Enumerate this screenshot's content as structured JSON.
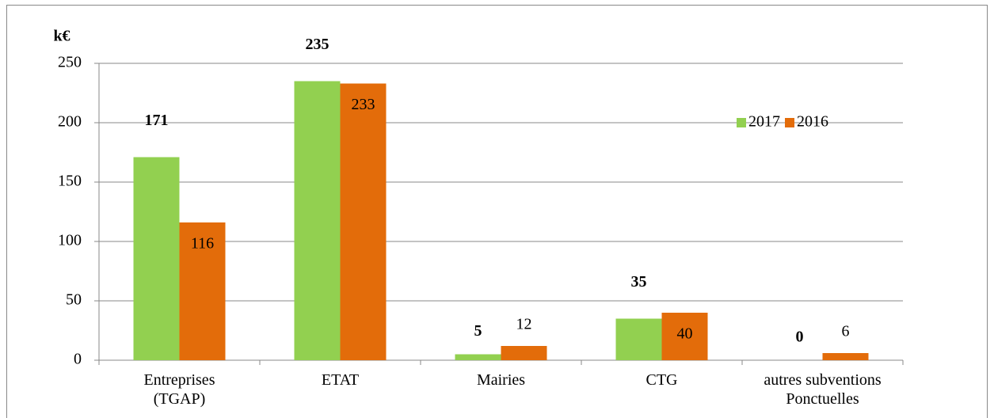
{
  "chart_data": {
    "type": "bar",
    "y_label": "k€",
    "categories": [
      "Entreprises\n(TGAP)",
      "ETAT",
      "Mairies",
      "CTG",
      "autres subventions\nPonctuelles"
    ],
    "series": [
      {
        "name": "2017",
        "color": "#92d050",
        "values": [
          171,
          235,
          5,
          35,
          0
        ]
      },
      {
        "name": "2016",
        "color": "#e36c0a",
        "values": [
          116,
          233,
          12,
          40,
          6
        ]
      }
    ],
    "ylim": [
      0,
      250
    ],
    "yticks": [
      0,
      50,
      100,
      150,
      200,
      250
    ],
    "grid": true,
    "legend": "upper right"
  }
}
